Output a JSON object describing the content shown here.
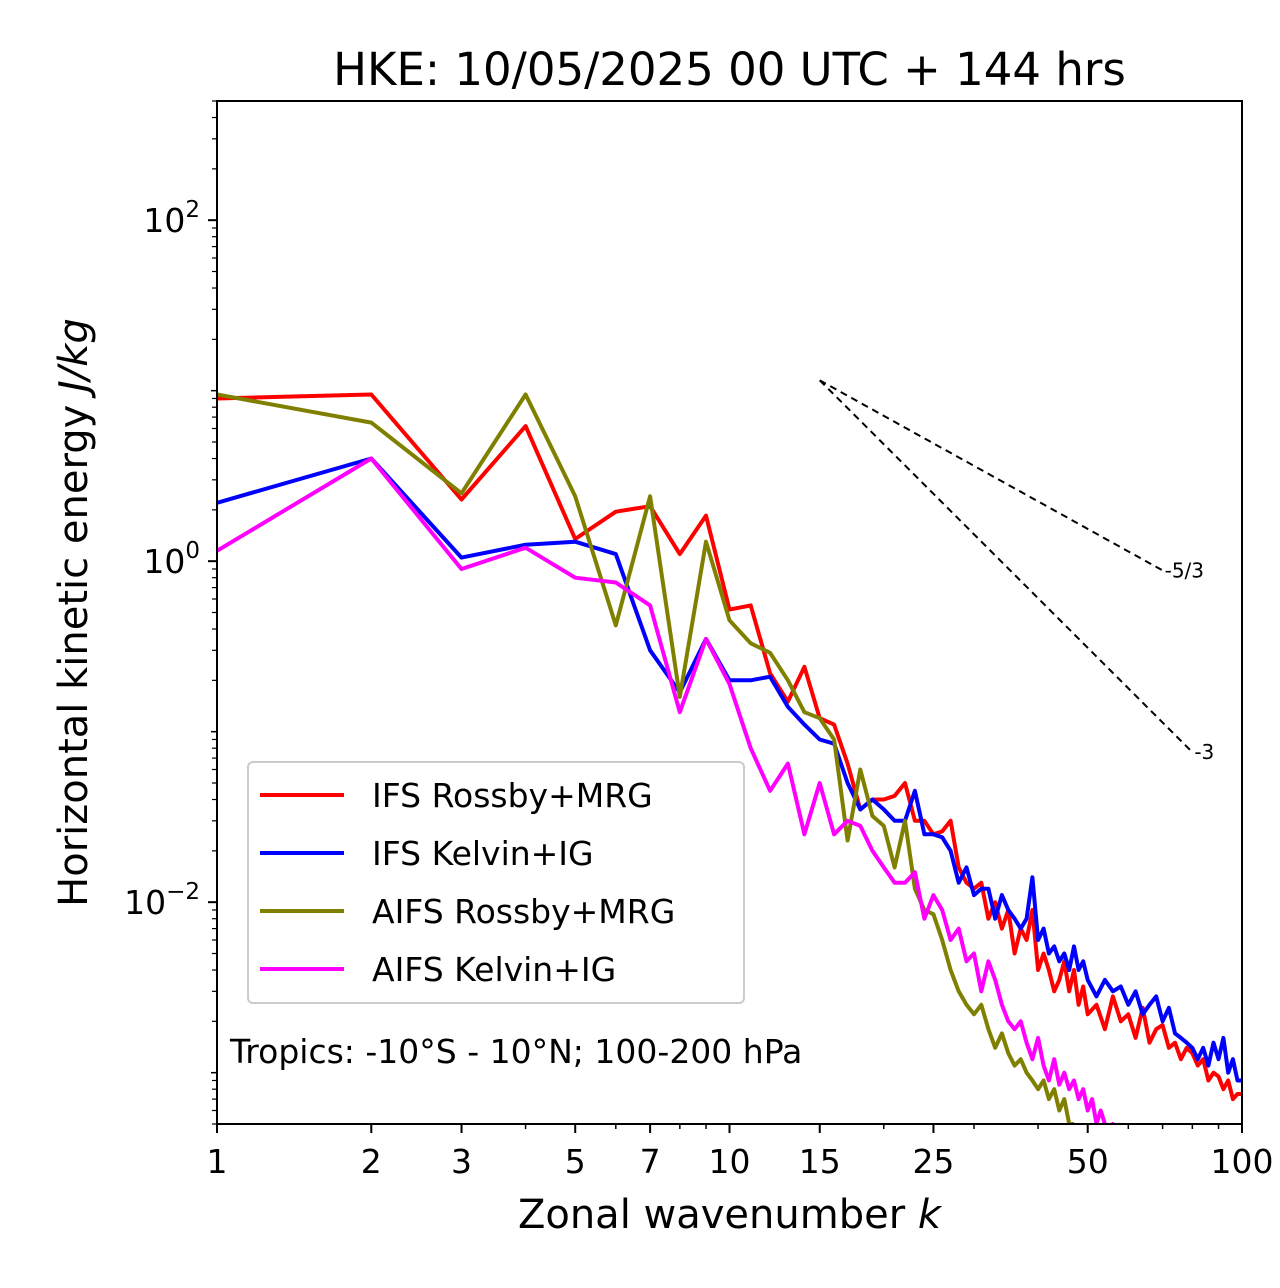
{
  "chart_data": {
    "type": "line",
    "title": "HKE: 10/05/2025 00 UTC + 144 hrs",
    "xlabel": "Zonal wavenumber",
    "xlabel_var": "k",
    "ylabel": "Horizontal kinetic energy",
    "ylabel_unit": "J/kg",
    "xscale": "log",
    "yscale": "log",
    "xlim": [
      1,
      100
    ],
    "ylim": [
      0.0005,
      500
    ],
    "xticks": [
      1,
      2,
      3,
      5,
      7,
      10,
      15,
      25,
      50,
      100
    ],
    "xtick_labels": [
      "1",
      "2",
      "3",
      "5",
      "7",
      "10",
      "15",
      "25",
      "50",
      "100"
    ],
    "yticks": [
      0.01,
      1,
      100
    ],
    "ytick_labels": [
      {
        "base": "10",
        "exp": "−2"
      },
      {
        "base": "10",
        "exp": "0"
      },
      {
        "base": "10",
        "exp": "2"
      }
    ],
    "annotation": "Tropics: -10°S - 10°N; 100-200 hPa",
    "legend_position": "lower-left",
    "reference_slopes": [
      {
        "label": "-5/3",
        "slope": -1.6667,
        "x": [
          15,
          70
        ],
        "y0": 11.5
      },
      {
        "label": "-3",
        "slope": -3,
        "x": [
          15,
          80
        ],
        "y0": 11.5
      }
    ],
    "series": [
      {
        "name": "IFS Rossby+MRG",
        "color": "#ff0000",
        "x": [
          1,
          2,
          3,
          4,
          5,
          6,
          7,
          8,
          9,
          10,
          11,
          12,
          13,
          14,
          15,
          16,
          17,
          18,
          19,
          20,
          21,
          22,
          23,
          24,
          25,
          26,
          27,
          28,
          29,
          30,
          31,
          32,
          33,
          34,
          35,
          36,
          37,
          38,
          39,
          40,
          41,
          42,
          43,
          44,
          45,
          46,
          47,
          48,
          49,
          50,
          52,
          54,
          56,
          58,
          60,
          62,
          64,
          66,
          68,
          70,
          72,
          74,
          76,
          78,
          80,
          82,
          84,
          86,
          88,
          90,
          92,
          94,
          96,
          98,
          100
        ],
        "y": [
          9,
          9.5,
          2.3,
          6.2,
          1.35,
          1.95,
          2.1,
          1.1,
          1.85,
          0.52,
          0.55,
          0.22,
          0.15,
          0.24,
          0.12,
          0.11,
          0.065,
          0.035,
          0.04,
          0.04,
          0.042,
          0.05,
          0.03,
          0.03,
          0.025,
          0.026,
          0.03,
          0.016,
          0.013,
          0.012,
          0.013,
          0.008,
          0.01,
          0.007,
          0.009,
          0.005,
          0.007,
          0.006,
          0.009,
          0.004,
          0.005,
          0.004,
          0.003,
          0.0035,
          0.0045,
          0.003,
          0.004,
          0.0025,
          0.0032,
          0.0022,
          0.0025,
          0.0018,
          0.0028,
          0.002,
          0.0022,
          0.0016,
          0.0024,
          0.0015,
          0.0018,
          0.0019,
          0.0014,
          0.0015,
          0.0012,
          0.0014,
          0.0013,
          0.0011,
          0.0012,
          0.0009,
          0.001,
          0.00095,
          0.0008,
          0.0009,
          0.0007,
          0.00075,
          0.00075
        ]
      },
      {
        "name": "IFS Kelvin+IG",
        "color": "#0000ff",
        "x": [
          1,
          2,
          3,
          4,
          5,
          6,
          7,
          8,
          9,
          10,
          11,
          12,
          13,
          14,
          15,
          16,
          17,
          18,
          19,
          20,
          21,
          22,
          23,
          24,
          25,
          26,
          27,
          28,
          29,
          30,
          31,
          32,
          33,
          34,
          35,
          36,
          37,
          38,
          39,
          40,
          41,
          42,
          43,
          44,
          45,
          46,
          47,
          48,
          49,
          50,
          52,
          54,
          56,
          58,
          60,
          62,
          64,
          66,
          68,
          70,
          72,
          74,
          76,
          78,
          80,
          82,
          84,
          86,
          88,
          90,
          92,
          94,
          96,
          98,
          100
        ],
        "y": [
          2.2,
          4,
          1.05,
          1.25,
          1.3,
          1.1,
          0.3,
          0.17,
          0.35,
          0.2,
          0.2,
          0.21,
          0.14,
          0.11,
          0.09,
          0.085,
          0.05,
          0.035,
          0.04,
          0.035,
          0.03,
          0.03,
          0.045,
          0.025,
          0.025,
          0.024,
          0.02,
          0.013,
          0.016,
          0.011,
          0.012,
          0.012,
          0.008,
          0.011,
          0.009,
          0.008,
          0.007,
          0.008,
          0.014,
          0.006,
          0.007,
          0.005,
          0.0055,
          0.0045,
          0.005,
          0.004,
          0.0055,
          0.004,
          0.0045,
          0.0035,
          0.0028,
          0.0035,
          0.003,
          0.0032,
          0.0025,
          0.003,
          0.0022,
          0.0025,
          0.0028,
          0.002,
          0.0024,
          0.0017,
          0.0016,
          0.0015,
          0.0014,
          0.0012,
          0.0014,
          0.0011,
          0.0015,
          0.0012,
          0.0016,
          0.001,
          0.0012,
          0.0009,
          0.0009
        ]
      },
      {
        "name": "AIFS Rossby+MRG",
        "color": "#808000",
        "x": [
          1,
          2,
          3,
          4,
          5,
          6,
          7,
          8,
          9,
          10,
          11,
          12,
          13,
          14,
          15,
          16,
          17,
          18,
          19,
          20,
          21,
          22,
          23,
          24,
          25,
          26,
          27,
          28,
          29,
          30,
          31,
          32,
          33,
          34,
          35,
          36,
          37,
          38,
          39,
          40,
          41,
          42,
          43,
          44,
          45,
          46,
          47
        ],
        "y": [
          9.5,
          6.5,
          2.5,
          9.5,
          2.4,
          0.42,
          2.4,
          0.16,
          1.3,
          0.45,
          0.33,
          0.29,
          0.2,
          0.13,
          0.12,
          0.09,
          0.023,
          0.06,
          0.032,
          0.028,
          0.016,
          0.03,
          0.012,
          0.009,
          0.0085,
          0.006,
          0.004,
          0.003,
          0.0025,
          0.0022,
          0.0025,
          0.0018,
          0.0014,
          0.0017,
          0.0013,
          0.0011,
          0.0012,
          0.001,
          0.0009,
          0.0008,
          0.0009,
          0.0007,
          0.0008,
          0.0006,
          0.0007,
          0.0005,
          0.0005
        ]
      },
      {
        "name": "AIFS Kelvin+IG",
        "color": "#ff00ff",
        "x": [
          1,
          2,
          3,
          4,
          5,
          6,
          7,
          8,
          9,
          10,
          11,
          12,
          13,
          14,
          15,
          16,
          17,
          18,
          19,
          20,
          21,
          22,
          23,
          24,
          25,
          26,
          27,
          28,
          29,
          30,
          31,
          32,
          33,
          34,
          35,
          36,
          37,
          38,
          39,
          40,
          41,
          42,
          43,
          44,
          45,
          46,
          47,
          48,
          49,
          50,
          51,
          52,
          53,
          54,
          55,
          56,
          57,
          58,
          59,
          60
        ],
        "y": [
          1.15,
          4,
          0.9,
          1.2,
          0.8,
          0.75,
          0.55,
          0.13,
          0.35,
          0.19,
          0.08,
          0.045,
          0.065,
          0.025,
          0.05,
          0.025,
          0.03,
          0.028,
          0.02,
          0.016,
          0.013,
          0.013,
          0.015,
          0.008,
          0.011,
          0.009,
          0.006,
          0.007,
          0.0045,
          0.005,
          0.003,
          0.0045,
          0.0035,
          0.0025,
          0.002,
          0.0018,
          0.002,
          0.0015,
          0.0012,
          0.0016,
          0.0011,
          0.0009,
          0.0012,
          0.00085,
          0.001,
          0.0008,
          0.0009,
          0.0007,
          0.0008,
          0.0006,
          0.0007,
          0.0005,
          0.0006,
          0.0005,
          0.00045,
          0.0005,
          0.0004,
          0.00045,
          0.0004,
          0.00035
        ]
      }
    ]
  }
}
